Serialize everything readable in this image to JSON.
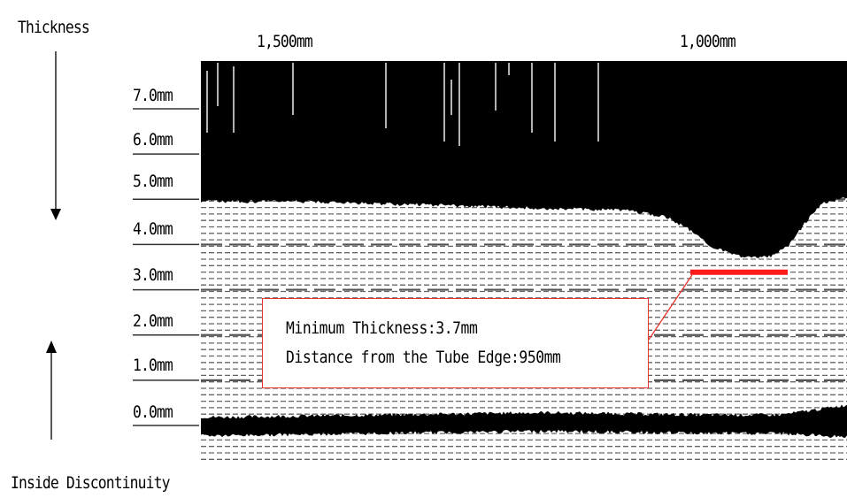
{
  "chart_data": {
    "type": "area",
    "title": "",
    "ylabel": "Thickness",
    "xlabel": "Inside Discontinuity",
    "x_axis_direction": "decreasing left-to-right",
    "x_ticks": [
      {
        "label": "1,500mm",
        "value": 1500
      },
      {
        "label": "1,000mm",
        "value": 1000
      }
    ],
    "xlim": [
      1800,
      800
    ],
    "y_ticks": [
      {
        "label": "7.0mm",
        "value": 7.0
      },
      {
        "label": "6.0mm",
        "value": 6.0
      },
      {
        "label": "5.0mm",
        "value": 5.0
      },
      {
        "label": "4.0mm",
        "value": 4.0
      },
      {
        "label": "3.0mm",
        "value": 3.0
      },
      {
        "label": "2.0mm",
        "value": 2.0
      },
      {
        "label": "1.0mm",
        "value": 1.0
      },
      {
        "label": "0.0mm",
        "value": 0.0
      }
    ],
    "ylim": [
      -0.5,
      7.5
    ],
    "outer_surface_profile": {
      "x": [
        1800,
        1700,
        1600,
        1500,
        1400,
        1300,
        1200,
        1100,
        1050,
        1020,
        1000,
        980,
        950,
        920,
        900,
        880,
        860,
        840,
        820,
        800
      ],
      "y": [
        5.0,
        5.0,
        4.95,
        4.95,
        4.9,
        4.85,
        4.8,
        4.75,
        4.6,
        4.3,
        4.0,
        3.85,
        3.7,
        3.75,
        4.0,
        4.5,
        4.9,
        5.0,
        5.05,
        5.1
      ]
    },
    "inner_surface_profile": {
      "x": [
        1800,
        1600,
        1400,
        1200,
        1000,
        900,
        800
      ],
      "y": [
        0.0,
        -0.05,
        0.0,
        0.05,
        0.0,
        0.0,
        0.05
      ]
    },
    "minimum_marker": {
      "x_start": 1000,
      "x_end": 900,
      "y": 3.25,
      "color": "#ff1a1a"
    },
    "annotation": {
      "line1": "Minimum Thickness:3.7mm",
      "line2": "Distance from the Tube Edge:950mm",
      "border_color": "#e8352e"
    }
  }
}
